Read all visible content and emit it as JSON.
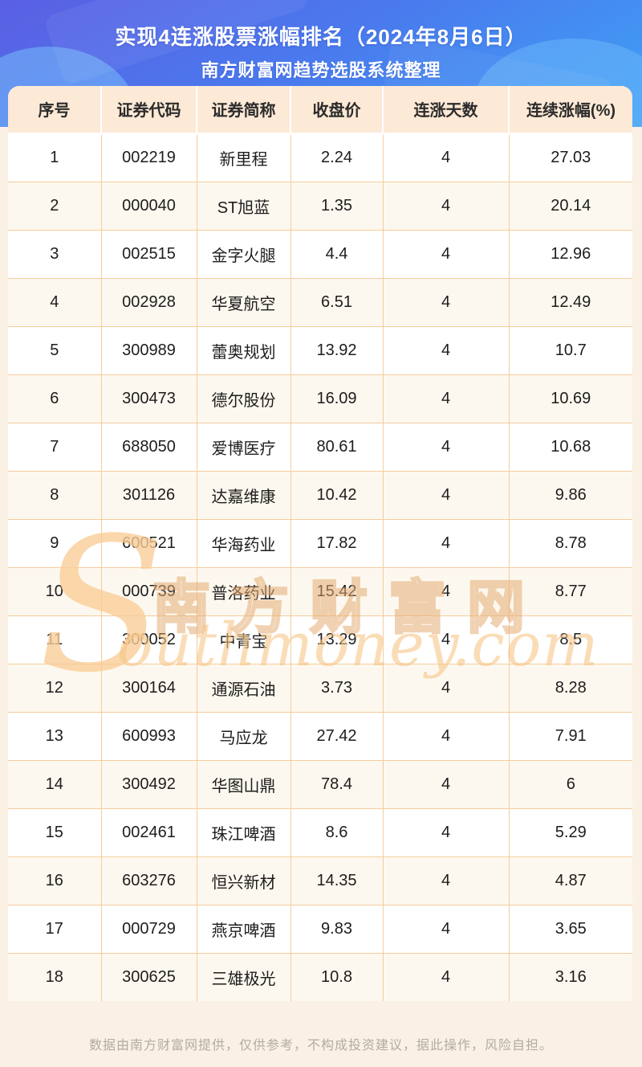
{
  "header": {
    "title": "实现4连涨股票涨幅排名（2024年8月6日）",
    "subtitle": "南方财富网趋势选股系统整理"
  },
  "chart_data": {
    "type": "table",
    "title": "实现4连涨股票涨幅排名（2024年8月6日）",
    "subtitle": "南方财富网趋势选股系统整理",
    "columns": [
      "序号",
      "证券代码",
      "证券简称",
      "收盘价",
      "连涨天数",
      "连续涨幅(%)"
    ],
    "rows": [
      [
        "1",
        "002219",
        "新里程",
        "2.24",
        "4",
        "27.03"
      ],
      [
        "2",
        "000040",
        "ST旭蓝",
        "1.35",
        "4",
        "20.14"
      ],
      [
        "3",
        "002515",
        "金字火腿",
        "4.4",
        "4",
        "12.96"
      ],
      [
        "4",
        "002928",
        "华夏航空",
        "6.51",
        "4",
        "12.49"
      ],
      [
        "5",
        "300989",
        "蕾奥规划",
        "13.92",
        "4",
        "10.7"
      ],
      [
        "6",
        "300473",
        "德尔股份",
        "16.09",
        "4",
        "10.69"
      ],
      [
        "7",
        "688050",
        "爱博医疗",
        "80.61",
        "4",
        "10.68"
      ],
      [
        "8",
        "301126",
        "达嘉维康",
        "10.42",
        "4",
        "9.86"
      ],
      [
        "9",
        "600521",
        "华海药业",
        "17.82",
        "4",
        "8.78"
      ],
      [
        "10",
        "000739",
        "普洛药业",
        "15.42",
        "4",
        "8.77"
      ],
      [
        "11",
        "300052",
        "中青宝",
        "13.29",
        "4",
        "8.5"
      ],
      [
        "12",
        "300164",
        "通源石油",
        "3.73",
        "4",
        "8.28"
      ],
      [
        "13",
        "600993",
        "马应龙",
        "27.42",
        "4",
        "7.91"
      ],
      [
        "14",
        "300492",
        "华图山鼎",
        "78.4",
        "4",
        "6"
      ],
      [
        "15",
        "002461",
        "珠江啤酒",
        "8.6",
        "4",
        "5.29"
      ],
      [
        "16",
        "603276",
        "恒兴新材",
        "14.35",
        "4",
        "4.87"
      ],
      [
        "17",
        "000729",
        "燕京啤酒",
        "9.83",
        "4",
        "3.65"
      ],
      [
        "18",
        "300625",
        "三雄极光",
        "10.8",
        "4",
        "3.16"
      ]
    ]
  },
  "watermark": {
    "initial": "S",
    "cn": "南方财富网",
    "en": "outhmoney.com"
  },
  "footer": {
    "disclaimer": "数据由南方财富网提供，仅供参考，不构成投资建议，据此操作，风险自担。"
  },
  "colors": {
    "banner_gradient_start": "#5a5fe3",
    "banner_gradient_mid": "#4a7aee",
    "banner_gradient_end": "#3ea2f5",
    "table_header_bg": "#fce9d6",
    "row_alt_bg": "#fdf8ef",
    "table_border": "#f5cc9c",
    "page_bg": "#faf0e4",
    "watermark_orange": "#f1b87f",
    "footer_text": "#b3aca0"
  }
}
